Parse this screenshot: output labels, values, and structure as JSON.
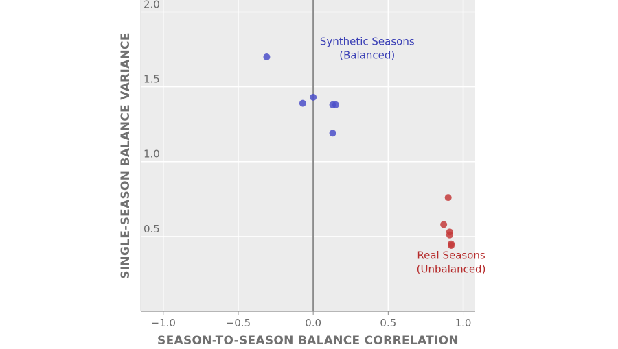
{
  "chart_data": {
    "type": "scatter",
    "xlabel": "SEASON-TO-SEASON BALANCE CORRELATION",
    "ylabel": "SINGLE-SEASON BALANCE VARIANCE",
    "xlim": [
      -1.15,
      1.08
    ],
    "ylim": [
      0.0,
      2.08
    ],
    "x_ticks": [
      -1.0,
      -0.5,
      0.0,
      0.5,
      1.0
    ],
    "x_tick_labels": [
      "−1.0",
      "−0.5",
      "0.0",
      "0.5",
      "1.0"
    ],
    "y_ticks": [
      0.5,
      1.0,
      1.5,
      2.0
    ],
    "y_tick_labels": [
      "0.5",
      "1.0",
      "1.5",
      "2.0"
    ],
    "grid": true,
    "reference_line_x": 0.0,
    "series": [
      {
        "color": "#4b4fc9",
        "points": [
          {
            "x": -0.31,
            "y": 1.7
          },
          {
            "x": -0.07,
            "y": 1.39
          },
          {
            "x": 0.0,
            "y": 1.43
          },
          {
            "x": 0.13,
            "y": 1.38
          },
          {
            "x": 0.15,
            "y": 1.38
          },
          {
            "x": 0.13,
            "y": 1.19
          }
        ]
      },
      {
        "color": "#c43b3b",
        "points": [
          {
            "x": 0.9,
            "y": 0.76
          },
          {
            "x": 0.87,
            "y": 0.58
          },
          {
            "x": 0.91,
            "y": 0.53
          },
          {
            "x": 0.91,
            "y": 0.51
          },
          {
            "x": 0.92,
            "y": 0.45
          },
          {
            "x": 0.92,
            "y": 0.44
          }
        ]
      }
    ],
    "annotations": [
      {
        "lines": [
          "Synthetic Seasons",
          "(Balanced)"
        ],
        "x": 0.36,
        "y": 1.78,
        "color": "#3a3fb5"
      },
      {
        "lines": [
          "Real Seasons",
          "(Unbalanced)"
        ],
        "x": 0.92,
        "y": 0.35,
        "color": "#b52a2a"
      }
    ]
  }
}
